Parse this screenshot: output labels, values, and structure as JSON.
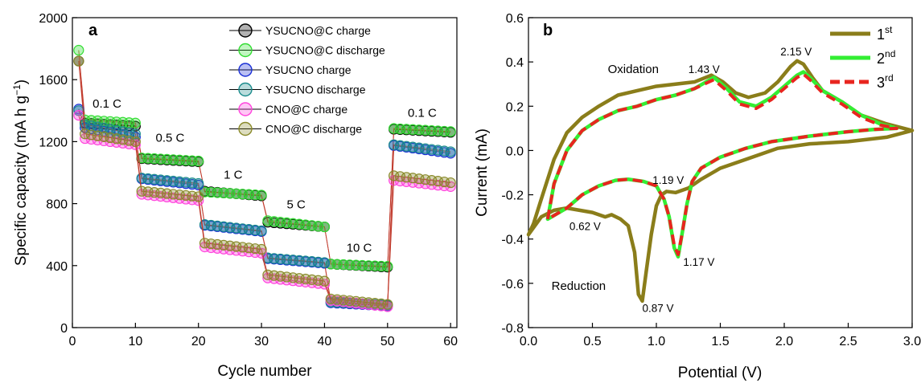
{
  "chart_data": [
    {
      "type": "scatter",
      "panel_label": "a",
      "xlabel": "Cycle number",
      "ylabel": "Specific capacity (mA h g",
      "ylabel_sup": "−1",
      "ylabel_close": ")",
      "xlim": [
        0,
        61
      ],
      "ylim": [
        0,
        2000
      ],
      "xticks": [
        0,
        10,
        20,
        30,
        40,
        50,
        60
      ],
      "yticks": [
        0,
        400,
        800,
        1200,
        1600,
        2000
      ],
      "legend_position": "top-center",
      "rate_labels": [
        {
          "text": "0.1 C",
          "x": 5.5,
          "y": 1420
        },
        {
          "text": "0.5 C",
          "x": 15.5,
          "y": 1200
        },
        {
          "text": "1 C",
          "x": 25.5,
          "y": 960
        },
        {
          "text": "5 C",
          "x": 35.5,
          "y": 770
        },
        {
          "text": "10 C",
          "x": 45.5,
          "y": 490
        },
        {
          "text": "0.1 C",
          "x": 55.5,
          "y": 1360
        }
      ],
      "series": [
        {
          "name": "YSUCNO@C charge",
          "color": "#000000",
          "first": 1720,
          "segments": [
            [
              1320,
              1300
            ],
            [
              1090,
              1070
            ],
            [
              880,
              850
            ],
            [
              680,
              650
            ],
            [
              410,
              390
            ],
            [
              1280,
              1260
            ]
          ]
        },
        {
          "name": "YSUCNO@C discharge",
          "color": "#33dd33",
          "first": 1790,
          "segments": [
            [
              1340,
              1320
            ],
            [
              1095,
              1075
            ],
            [
              875,
              855
            ],
            [
              690,
              650
            ],
            [
              410,
              395
            ],
            [
              1285,
              1265
            ]
          ]
        },
        {
          "name": "YSUCNO charge",
          "color": "#1a2fd6",
          "first": 1410,
          "segments": [
            [
              1290,
              1230
            ],
            [
              960,
              920
            ],
            [
              660,
              620
            ],
            [
              445,
              415
            ],
            [
              160,
              140
            ],
            [
              1175,
              1125
            ]
          ]
        },
        {
          "name": "YSUCNO discharge",
          "color": "#1b8c8c",
          "first": 1400,
          "segments": [
            [
              1310,
              1250
            ],
            [
              965,
              930
            ],
            [
              665,
              625
            ],
            [
              450,
              420
            ],
            [
              165,
              145
            ],
            [
              1180,
              1135
            ]
          ]
        },
        {
          "name": "CNO@C charge",
          "color": "#ff44dd",
          "first": 1370,
          "segments": [
            [
              1220,
              1180
            ],
            [
              860,
              820
            ],
            [
              520,
              480
            ],
            [
              320,
              280
            ],
            [
              175,
              135
            ],
            [
              950,
              910
            ]
          ]
        },
        {
          "name": "CNO@C discharge",
          "color": "#8a8a2a",
          "first": 1720,
          "segments": [
            [
              1250,
              1200
            ],
            [
              880,
              845
            ],
            [
              545,
              505
            ],
            [
              340,
              300
            ],
            [
              185,
              150
            ],
            [
              980,
              935
            ]
          ]
        }
      ]
    },
    {
      "type": "line",
      "panel_label": "b",
      "xlabel": "Potential (V)",
      "ylabel": "Current (mA)",
      "xlim": [
        0.0,
        3.0
      ],
      "ylim": [
        -0.8,
        0.6
      ],
      "xticks": [
        "0.0",
        "0.5",
        "1.0",
        "1.5",
        "2.0",
        "2.5",
        "3.0"
      ],
      "yticks": [
        "-0.8",
        "-0.6",
        "-0.4",
        "-0.2",
        "0.0",
        "0.2",
        "0.4",
        "0.6"
      ],
      "legend_position": "top-right",
      "annotations": [
        {
          "text": "Oxidation",
          "x": 0.62,
          "y": 0.35
        },
        {
          "text": "Reduction",
          "x": 0.18,
          "y": -0.63
        },
        {
          "text": "1.43 V",
          "x": 1.25,
          "y": 0.35
        },
        {
          "text": "2.15 V",
          "x": 1.97,
          "y": 0.43
        },
        {
          "text": "1.19 V",
          "x": 0.97,
          "y": -0.15
        },
        {
          "text": "0.62 V",
          "x": 0.32,
          "y": -0.36
        },
        {
          "text": "1.17 V",
          "x": 1.21,
          "y": -0.52
        },
        {
          "text": "0.87 V",
          "x": 0.89,
          "y": -0.73
        }
      ],
      "series": [
        {
          "name": "1st",
          "label_main": "1",
          "label_sup": "st",
          "color": "#8a7d1a",
          "dash": false,
          "points": [
            [
              0.0,
              -0.38
            ],
            [
              0.04,
              -0.33
            ],
            [
              0.1,
              -0.22
            ],
            [
              0.2,
              -0.04
            ],
            [
              0.3,
              0.08
            ],
            [
              0.42,
              0.15
            ],
            [
              0.55,
              0.2
            ],
            [
              0.7,
              0.25
            ],
            [
              0.85,
              0.27
            ],
            [
              1.0,
              0.29
            ],
            [
              1.15,
              0.3
            ],
            [
              1.3,
              0.31
            ],
            [
              1.43,
              0.34
            ],
            [
              1.52,
              0.31
            ],
            [
              1.62,
              0.26
            ],
            [
              1.72,
              0.24
            ],
            [
              1.85,
              0.26
            ],
            [
              1.95,
              0.31
            ],
            [
              2.05,
              0.38
            ],
            [
              2.1,
              0.405
            ],
            [
              2.15,
              0.39
            ],
            [
              2.22,
              0.33
            ],
            [
              2.3,
              0.27
            ],
            [
              2.45,
              0.22
            ],
            [
              2.6,
              0.16
            ],
            [
              2.8,
              0.12
            ],
            [
              3.0,
              0.09
            ],
            [
              2.8,
              0.06
            ],
            [
              2.5,
              0.04
            ],
            [
              2.2,
              0.03
            ],
            [
              1.95,
              0.01
            ],
            [
              1.7,
              -0.04
            ],
            [
              1.5,
              -0.08
            ],
            [
              1.35,
              -0.13
            ],
            [
              1.25,
              -0.17
            ],
            [
              1.15,
              -0.19
            ],
            [
              1.08,
              -0.185
            ],
            [
              1.04,
              -0.2
            ],
            [
              1.0,
              -0.25
            ],
            [
              0.96,
              -0.38
            ],
            [
              0.92,
              -0.55
            ],
            [
              0.89,
              -0.68
            ],
            [
              0.86,
              -0.65
            ],
            [
              0.83,
              -0.46
            ],
            [
              0.78,
              -0.34
            ],
            [
              0.72,
              -0.31
            ],
            [
              0.65,
              -0.29
            ],
            [
              0.6,
              -0.3
            ],
            [
              0.5,
              -0.28
            ],
            [
              0.4,
              -0.27
            ],
            [
              0.3,
              -0.26
            ],
            [
              0.2,
              -0.27
            ],
            [
              0.1,
              -0.3
            ],
            [
              0.0,
              -0.38
            ]
          ]
        },
        {
          "name": "2nd",
          "label_main": "2",
          "label_sup": "nd",
          "color": "#33ee33",
          "dash": false,
          "points": [
            [
              0.15,
              -0.31
            ],
            [
              0.2,
              -0.15
            ],
            [
              0.3,
              0.0
            ],
            [
              0.42,
              0.09
            ],
            [
              0.55,
              0.14
            ],
            [
              0.7,
              0.18
            ],
            [
              0.85,
              0.2
            ],
            [
              1.0,
              0.23
            ],
            [
              1.15,
              0.25
            ],
            [
              1.3,
              0.28
            ],
            [
              1.45,
              0.33
            ],
            [
              1.55,
              0.28
            ],
            [
              1.65,
              0.22
            ],
            [
              1.78,
              0.2
            ],
            [
              1.9,
              0.24
            ],
            [
              2.0,
              0.29
            ],
            [
              2.1,
              0.34
            ],
            [
              2.15,
              0.355
            ],
            [
              2.2,
              0.33
            ],
            [
              2.3,
              0.27
            ],
            [
              2.45,
              0.22
            ],
            [
              2.6,
              0.16
            ],
            [
              2.75,
              0.12
            ],
            [
              2.88,
              0.1
            ],
            [
              2.7,
              0.095
            ],
            [
              2.5,
              0.085
            ],
            [
              2.2,
              0.065
            ],
            [
              1.9,
              0.04
            ],
            [
              1.7,
              0.01
            ],
            [
              1.5,
              -0.03
            ],
            [
              1.35,
              -0.08
            ],
            [
              1.28,
              -0.14
            ],
            [
              1.24,
              -0.24
            ],
            [
              1.2,
              -0.38
            ],
            [
              1.17,
              -0.48
            ],
            [
              1.14,
              -0.44
            ],
            [
              1.1,
              -0.3
            ],
            [
              1.06,
              -0.22
            ],
            [
              1.0,
              -0.16
            ],
            [
              0.9,
              -0.14
            ],
            [
              0.78,
              -0.13
            ],
            [
              0.68,
              -0.135
            ],
            [
              0.55,
              -0.16
            ],
            [
              0.42,
              -0.2
            ],
            [
              0.3,
              -0.26
            ],
            [
              0.15,
              -0.31
            ]
          ]
        },
        {
          "name": "3rd",
          "label_main": "3",
          "label_sup": "rd",
          "color": "#e8251f",
          "dash": true,
          "points": [
            [
              0.15,
              -0.31
            ],
            [
              0.2,
              -0.15
            ],
            [
              0.3,
              0.0
            ],
            [
              0.42,
              0.09
            ],
            [
              0.55,
              0.14
            ],
            [
              0.7,
              0.18
            ],
            [
              0.85,
              0.2
            ],
            [
              1.0,
              0.23
            ],
            [
              1.15,
              0.25
            ],
            [
              1.3,
              0.28
            ],
            [
              1.45,
              0.32
            ],
            [
              1.55,
              0.27
            ],
            [
              1.65,
              0.21
            ],
            [
              1.78,
              0.19
            ],
            [
              1.9,
              0.23
            ],
            [
              2.0,
              0.28
            ],
            [
              2.1,
              0.33
            ],
            [
              2.15,
              0.345
            ],
            [
              2.2,
              0.32
            ],
            [
              2.3,
              0.26
            ],
            [
              2.45,
              0.21
            ],
            [
              2.6,
              0.15
            ],
            [
              2.75,
              0.115
            ],
            [
              2.88,
              0.1
            ],
            [
              2.7,
              0.095
            ],
            [
              2.5,
              0.085
            ],
            [
              2.2,
              0.065
            ],
            [
              1.9,
              0.04
            ],
            [
              1.7,
              0.01
            ],
            [
              1.5,
              -0.03
            ],
            [
              1.35,
              -0.08
            ],
            [
              1.28,
              -0.14
            ],
            [
              1.24,
              -0.24
            ],
            [
              1.2,
              -0.38
            ],
            [
              1.17,
              -0.47
            ],
            [
              1.14,
              -0.43
            ],
            [
              1.1,
              -0.3
            ],
            [
              1.06,
              -0.22
            ],
            [
              1.0,
              -0.16
            ],
            [
              0.9,
              -0.14
            ],
            [
              0.78,
              -0.13
            ],
            [
              0.68,
              -0.135
            ],
            [
              0.55,
              -0.16
            ],
            [
              0.42,
              -0.2
            ],
            [
              0.3,
              -0.26
            ],
            [
              0.15,
              -0.31
            ]
          ]
        }
      ]
    }
  ]
}
